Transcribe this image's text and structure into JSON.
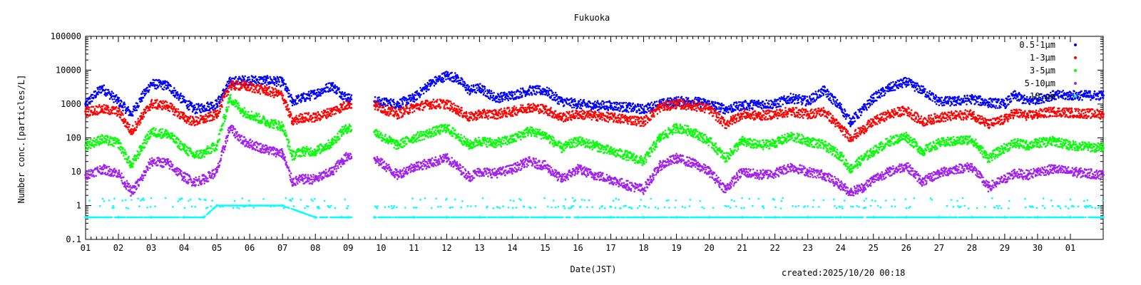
{
  "chart_data": {
    "type": "scatter",
    "title": "Fukuoka",
    "xlabel": "Date(JST)",
    "ylabel": "Number conc.[particles/L]",
    "yscale": "log",
    "ylim": [
      0.1,
      100000
    ],
    "xlim": [
      1,
      32
    ],
    "x_ticks": [
      "01",
      "02",
      "03",
      "04",
      "05",
      "06",
      "07",
      "08",
      "09",
      "10",
      "11",
      "12",
      "13",
      "14",
      "15",
      "16",
      "17",
      "18",
      "19",
      "20",
      "21",
      "22",
      "23",
      "24",
      "25",
      "26",
      "27",
      "28",
      "29",
      "30",
      "01"
    ],
    "y_ticks": [
      "0.1",
      "1",
      "10",
      "100",
      "1000",
      "10000",
      "100000"
    ],
    "gap": [
      9.1,
      9.8
    ],
    "series": [
      {
        "name": "0.5-1μm",
        "color": "#0000ff",
        "x": [
          1,
          1.5,
          2,
          2.4,
          2.7,
          3,
          3.5,
          4,
          4.3,
          4.6,
          5,
          5.4,
          5.8,
          6.5,
          7,
          7.3,
          7.6,
          8,
          8.5,
          8.8,
          9.0,
          9.8,
          10.5,
          11,
          11.5,
          12,
          12.3,
          12.7,
          13,
          13.5,
          14,
          14.5,
          15,
          15.5,
          16,
          16.5,
          17,
          17.5,
          18,
          18.5,
          19,
          19.5,
          20,
          20.5,
          21,
          21.5,
          22,
          22.5,
          23,
          23.5,
          24,
          24.3,
          24.7,
          25,
          25.5,
          26,
          26.5,
          27,
          27.5,
          28,
          28.5,
          29,
          29.3,
          29.7,
          30,
          30.5,
          31,
          32
        ],
        "y": [
          1000,
          3000,
          1200,
          500,
          1500,
          4000,
          3500,
          1200,
          700,
          800,
          1000,
          4500,
          5000,
          5000,
          4500,
          1200,
          1500,
          2000,
          3500,
          2000,
          1500,
          1200,
          1000,
          1500,
          4000,
          7000,
          6000,
          2500,
          3000,
          1500,
          1800,
          2500,
          2500,
          1200,
          1000,
          900,
          900,
          800,
          700,
          1000,
          1200,
          1200,
          1000,
          700,
          900,
          1000,
          1000,
          1500,
          1200,
          2500,
          800,
          300,
          700,
          1500,
          3000,
          4500,
          2500,
          1200,
          1200,
          1400,
          1100,
          1000,
          1800,
          1200,
          1400,
          1800,
          1800,
          1800
        ]
      },
      {
        "name": "1-3μm",
        "color": "#ff0000",
        "x": [
          1,
          1.5,
          2,
          2.4,
          2.7,
          3,
          3.5,
          4,
          4.3,
          4.6,
          5,
          5.4,
          5.8,
          6.5,
          7,
          7.3,
          7.6,
          8,
          8.5,
          8.8,
          9.0,
          9.8,
          10.5,
          11,
          11.5,
          12,
          12.3,
          12.7,
          13,
          13.5,
          14,
          14.5,
          15,
          15.5,
          16,
          16.5,
          17,
          17.5,
          18,
          18.5,
          19,
          19.5,
          20,
          20.5,
          21,
          21.5,
          22,
          22.5,
          23,
          23.5,
          24,
          24.3,
          24.7,
          25,
          25.5,
          26,
          26.5,
          27,
          27.5,
          28,
          28.5,
          29,
          29.3,
          29.7,
          30,
          30.5,
          31,
          32
        ],
        "y": [
          600,
          700,
          600,
          150,
          400,
          1000,
          900,
          400,
          300,
          350,
          500,
          3500,
          3500,
          2500,
          1800,
          300,
          400,
          400,
          600,
          800,
          1000,
          900,
          500,
          800,
          1000,
          1000,
          700,
          400,
          500,
          500,
          600,
          800,
          700,
          400,
          500,
          450,
          400,
          350,
          300,
          800,
          1000,
          900,
          700,
          250,
          500,
          450,
          500,
          600,
          500,
          600,
          200,
          100,
          180,
          300,
          500,
          650,
          300,
          400,
          450,
          500,
          250,
          350,
          550,
          450,
          500,
          600,
          550,
          500
        ]
      },
      {
        "name": "3-5μm",
        "color": "#00ff00",
        "x": [
          1,
          1.5,
          2,
          2.4,
          2.7,
          3,
          3.5,
          4,
          4.3,
          4.6,
          5,
          5.4,
          5.8,
          6.5,
          7,
          7.3,
          7.6,
          8,
          8.5,
          8.8,
          9.0,
          9.8,
          10.5,
          11,
          11.5,
          12,
          12.3,
          12.7,
          13,
          13.5,
          14,
          14.5,
          15,
          15.5,
          16,
          16.5,
          17,
          17.5,
          18,
          18.5,
          19,
          19.5,
          20,
          20.5,
          21,
          21.5,
          22,
          22.5,
          23,
          23.5,
          24,
          24.3,
          24.7,
          25,
          25.5,
          26,
          26.5,
          27,
          27.5,
          28,
          28.5,
          29,
          29.3,
          29.7,
          30,
          30.5,
          31,
          32
        ],
        "y": [
          60,
          90,
          70,
          15,
          50,
          150,
          130,
          50,
          30,
          35,
          60,
          1500,
          600,
          300,
          220,
          30,
          40,
          40,
          70,
          150,
          200,
          150,
          60,
          100,
          140,
          200,
          120,
          60,
          80,
          70,
          90,
          160,
          120,
          50,
          80,
          60,
          40,
          30,
          20,
          100,
          200,
          150,
          80,
          25,
          80,
          60,
          70,
          110,
          80,
          60,
          30,
          12,
          25,
          40,
          80,
          110,
          40,
          70,
          80,
          90,
          25,
          50,
          70,
          60,
          70,
          80,
          60,
          50
        ]
      },
      {
        "name": "5-10μm",
        "color": "#a020f0",
        "x": [
          1,
          1.5,
          2,
          2.4,
          2.7,
          3,
          3.5,
          4,
          4.3,
          4.6,
          5,
          5.4,
          5.8,
          6.5,
          7,
          7.3,
          7.6,
          8,
          8.5,
          8.8,
          9.0,
          9.8,
          10.5,
          11,
          11.5,
          12,
          12.3,
          12.7,
          13,
          13.5,
          14,
          14.5,
          15,
          15.5,
          16,
          16.5,
          17,
          17.5,
          18,
          18.5,
          19,
          19.5,
          20,
          20.5,
          21,
          21.5,
          22,
          22.5,
          23,
          23.5,
          24,
          24.3,
          24.7,
          25,
          25.5,
          26,
          26.5,
          27,
          27.5,
          28,
          28.5,
          29,
          29.3,
          29.7,
          30,
          30.5,
          31,
          32
        ],
        "y": [
          8,
          12,
          9,
          2.5,
          6,
          20,
          18,
          7,
          5,
          6,
          10,
          200,
          80,
          45,
          35,
          5,
          6,
          6,
          10,
          20,
          30,
          25,
          8,
          14,
          18,
          25,
          15,
          7,
          10,
          9,
          12,
          20,
          15,
          6,
          12,
          8,
          6,
          4,
          3,
          15,
          25,
          18,
          10,
          3,
          10,
          8,
          9,
          14,
          10,
          8,
          4,
          2.5,
          3.5,
          6,
          10,
          15,
          5,
          9,
          12,
          14,
          3.5,
          6,
          9,
          8,
          10,
          12,
          10,
          8
        ]
      },
      {
        "name": "10-μm",
        "color": "#00ffff",
        "x": [
          1,
          2,
          3,
          4,
          4.6,
          5,
          6,
          7,
          8,
          8.8,
          9.0,
          9.8,
          11,
          12,
          13,
          14,
          15,
          16,
          17,
          18,
          19,
          20,
          21,
          22,
          23,
          24,
          25,
          26,
          27,
          28,
          29,
          30,
          31,
          32
        ],
        "y": [
          0.45,
          0.45,
          0.45,
          0.45,
          0.45,
          1.0,
          1.0,
          1.0,
          0.45,
          0.45,
          0.45,
          0.45,
          0.45,
          0.45,
          0.45,
          0.45,
          0.45,
          0.45,
          0.45,
          0.45,
          0.45,
          0.45,
          0.45,
          0.45,
          0.45,
          0.45,
          0.45,
          0.45,
          0.45,
          0.45,
          0.45,
          0.45,
          0.45,
          0.45
        ]
      }
    ]
  },
  "footer": {
    "created": "created:2025/10/20 00:18"
  }
}
